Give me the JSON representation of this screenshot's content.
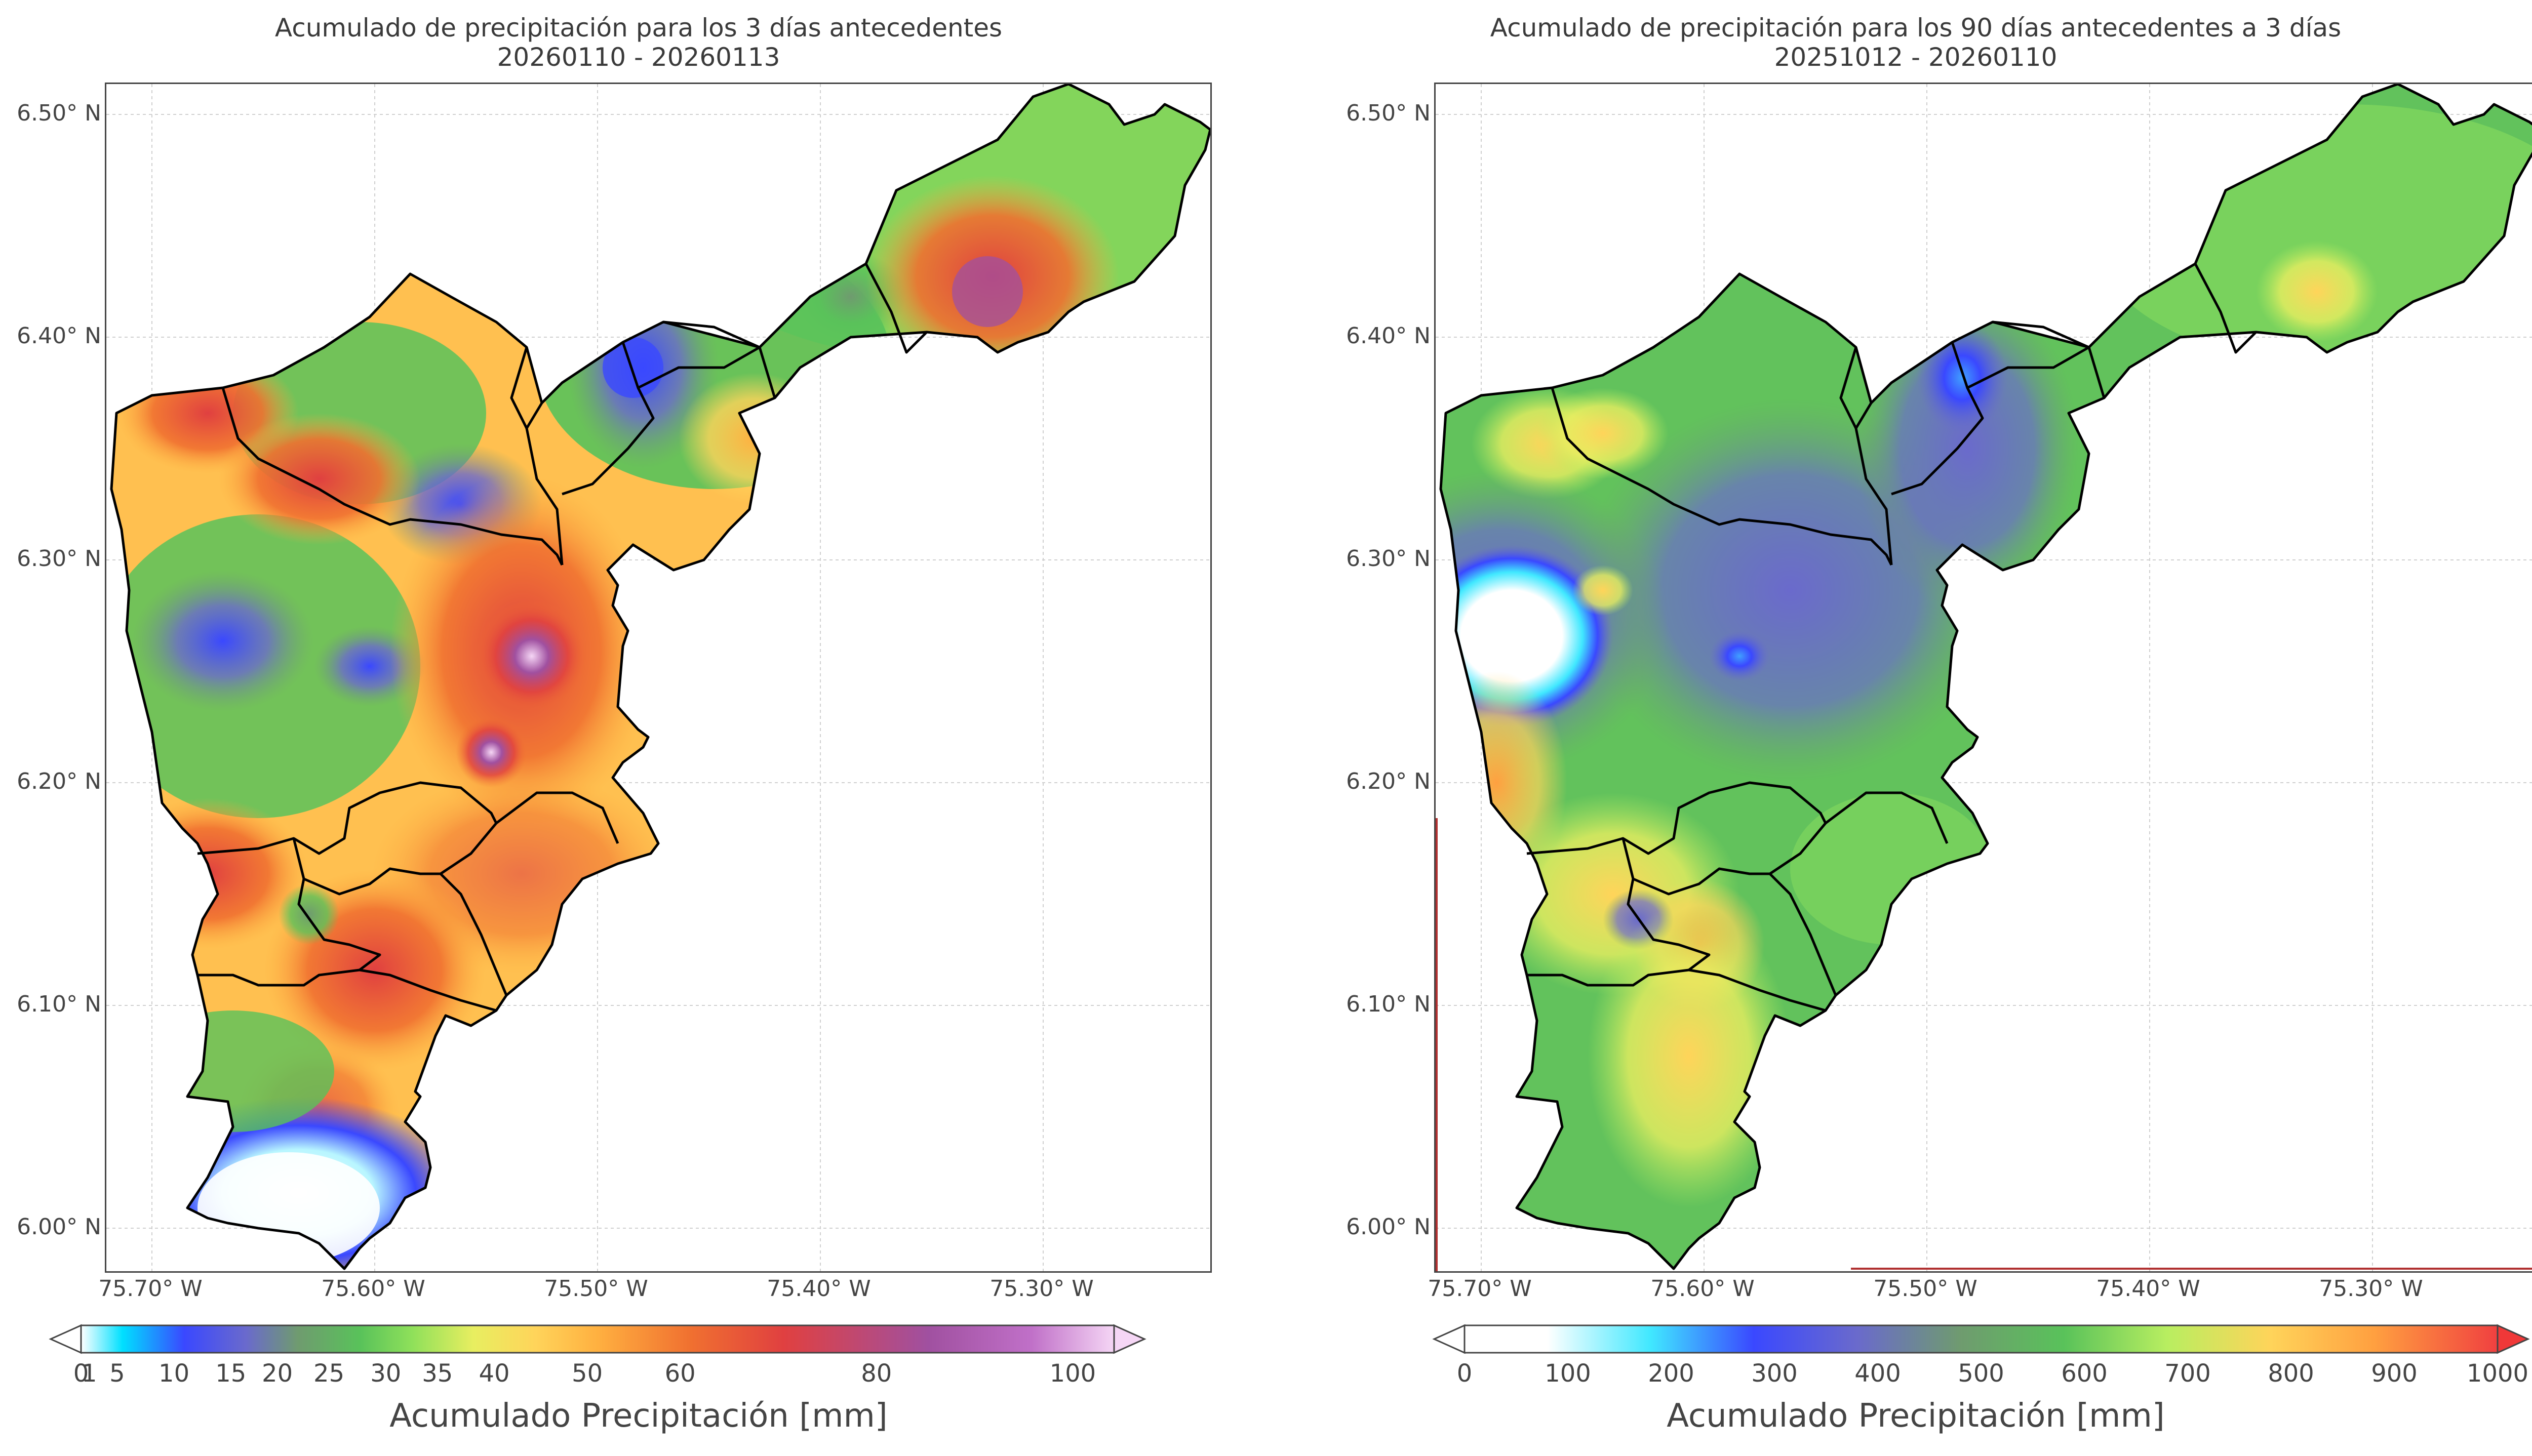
{
  "left_panel": {
    "title_line1": "Acumulado de precipitación para los 3 días antecedentes",
    "title_line2": "20260110 - 20260113",
    "y_ticks": [
      "6.50° N",
      "6.40° N",
      "6.30° N",
      "6.20° N",
      "6.10° N",
      "6.00° N"
    ],
    "x_ticks": [
      "75.70° W",
      "75.60° W",
      "75.50° W",
      "75.40° W",
      "75.30° W"
    ],
    "colorbar": {
      "label": "Acumulado Precipitación [mm]",
      "ticks": [
        "0",
        "1",
        "5",
        "10",
        "15",
        "20",
        "25",
        "30",
        "35",
        "40",
        "50",
        "60",
        "80",
        "100"
      ],
      "tick_values": [
        0,
        1,
        5,
        10,
        15,
        20,
        25,
        30,
        35,
        40,
        50,
        60,
        80,
        100
      ],
      "colors": [
        "#ffffff",
        "#00e0ff",
        "#3a48ff",
        "#6a6acc",
        "#6f9b6f",
        "#59c25a",
        "#8ee05a",
        "#e8ee60",
        "#ffd45a",
        "#ffb040",
        "#f07030",
        "#e04040",
        "#a050a0",
        "#c070c8",
        "#f5d6f5"
      ]
    }
  },
  "right_panel": {
    "title_line1": "Acumulado de precipitación para los 90 días antecedentes a 3 días",
    "title_line2": "20251012 - 20260110",
    "y_ticks": [
      "6.50° N",
      "6.40° N",
      "6.30° N",
      "6.20° N",
      "6.10° N",
      "6.00° N"
    ],
    "x_ticks": [
      "75.70° W",
      "75.60° W",
      "75.50° W",
      "75.40° W",
      "75.30° W"
    ],
    "colorbar": {
      "label": "Acumulado Precipitación [mm]",
      "ticks": [
        "0",
        "100",
        "200",
        "300",
        "400",
        "500",
        "600",
        "700",
        "800",
        "900",
        "1000"
      ],
      "tick_values": [
        0,
        100,
        200,
        300,
        400,
        500,
        600,
        700,
        800,
        900,
        1000
      ],
      "colors": [
        "#ffffff",
        "#ffffff",
        "#40e8ff",
        "#3a48ff",
        "#6a6acc",
        "#6f9b6f",
        "#59c25a",
        "#b8ee60",
        "#ffd45a",
        "#ffa040",
        "#f04040",
        "#f03838"
      ]
    }
  }
}
